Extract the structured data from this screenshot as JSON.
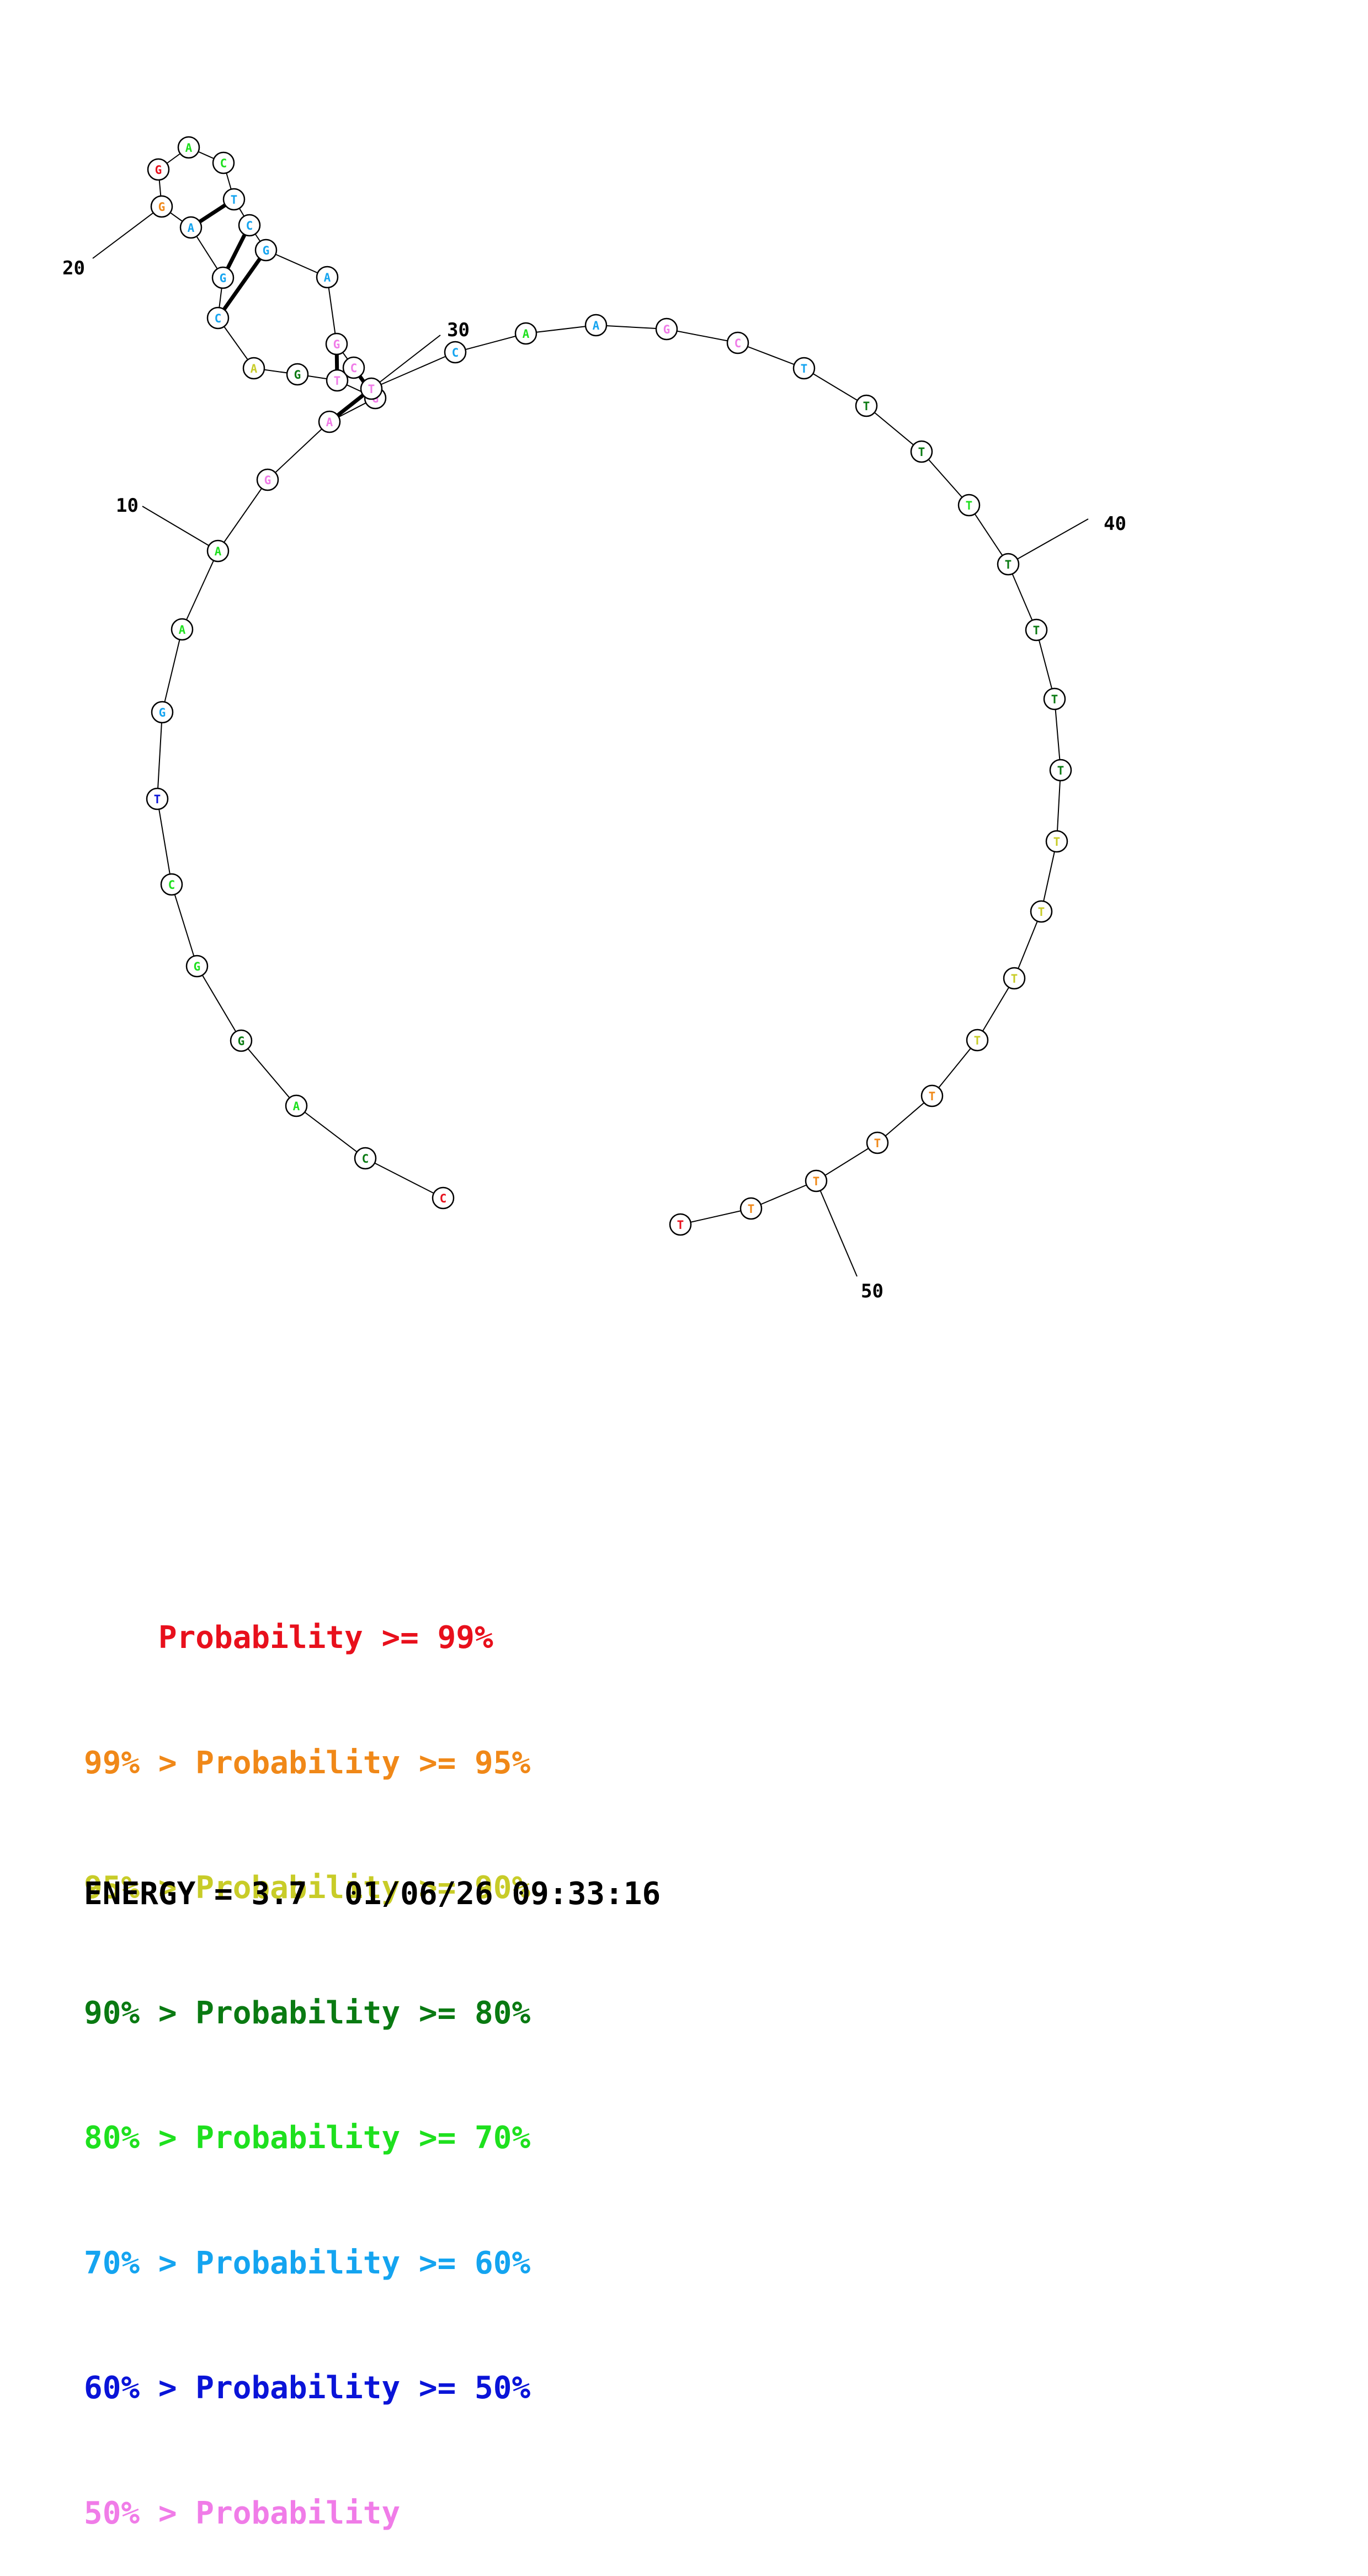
{
  "colors": {
    "red": "#e8101c",
    "orange": "#f08818",
    "yellow": "#c8cc28",
    "darkgreen": "#0a7a12",
    "green": "#1ee01e",
    "cyan": "#14a4f0",
    "blue": "#0a14d8",
    "pink": "#f07ce8"
  },
  "sequence": [
    {
      "n": 1,
      "base": "C",
      "color": "red"
    },
    {
      "n": 2,
      "base": "C",
      "color": "darkgreen"
    },
    {
      "n": 3,
      "base": "A",
      "color": "green"
    },
    {
      "n": 4,
      "base": "G",
      "color": "darkgreen"
    },
    {
      "n": 5,
      "base": "G",
      "color": "green"
    },
    {
      "n": 6,
      "base": "C",
      "color": "green"
    },
    {
      "n": 7,
      "base": "T",
      "color": "blue"
    },
    {
      "n": 8,
      "base": "G",
      "color": "cyan"
    },
    {
      "n": 9,
      "base": "A",
      "color": "green"
    },
    {
      "n": 10,
      "base": "A",
      "color": "green"
    },
    {
      "n": 11,
      "base": "G",
      "color": "pink"
    },
    {
      "n": 12,
      "base": "A",
      "color": "pink"
    },
    {
      "n": 13,
      "base": "G",
      "color": "pink"
    },
    {
      "n": 14,
      "base": "T",
      "color": "pink"
    },
    {
      "n": 15,
      "base": "G",
      "color": "darkgreen"
    },
    {
      "n": 16,
      "base": "A",
      "color": "yellow"
    },
    {
      "n": 17,
      "base": "C",
      "color": "cyan"
    },
    {
      "n": 18,
      "base": "G",
      "color": "cyan"
    },
    {
      "n": 19,
      "base": "A",
      "color": "cyan"
    },
    {
      "n": 20,
      "base": "G",
      "color": "orange"
    },
    {
      "n": 21,
      "base": "G",
      "color": "red"
    },
    {
      "n": 22,
      "base": "A",
      "color": "green"
    },
    {
      "n": 23,
      "base": "C",
      "color": "green"
    },
    {
      "n": 24,
      "base": "T",
      "color": "cyan"
    },
    {
      "n": 25,
      "base": "C",
      "color": "cyan"
    },
    {
      "n": 26,
      "base": "G",
      "color": "cyan"
    },
    {
      "n": 27,
      "base": "A",
      "color": "cyan"
    },
    {
      "n": 28,
      "base": "G",
      "color": "pink"
    },
    {
      "n": 29,
      "base": "C",
      "color": "pink"
    },
    {
      "n": 30,
      "base": "T",
      "color": "pink"
    },
    {
      "n": 31,
      "base": "C",
      "color": "cyan"
    },
    {
      "n": 32,
      "base": "A",
      "color": "green"
    },
    {
      "n": 33,
      "base": "A",
      "color": "cyan"
    },
    {
      "n": 34,
      "base": "G",
      "color": "pink"
    },
    {
      "n": 35,
      "base": "C",
      "color": "pink"
    },
    {
      "n": 36,
      "base": "T",
      "color": "cyan"
    },
    {
      "n": 37,
      "base": "T",
      "color": "darkgreen"
    },
    {
      "n": 38,
      "base": "T",
      "color": "darkgreen"
    },
    {
      "n": 39,
      "base": "T",
      "color": "green"
    },
    {
      "n": 40,
      "base": "T",
      "color": "darkgreen"
    },
    {
      "n": 41,
      "base": "T",
      "color": "darkgreen"
    },
    {
      "n": 42,
      "base": "T",
      "color": "darkgreen"
    },
    {
      "n": 43,
      "base": "T",
      "color": "darkgreen"
    },
    {
      "n": 44,
      "base": "T",
      "color": "yellow"
    },
    {
      "n": 45,
      "base": "T",
      "color": "yellow"
    },
    {
      "n": 46,
      "base": "T",
      "color": "yellow"
    },
    {
      "n": 47,
      "base": "T",
      "color": "yellow"
    },
    {
      "n": 48,
      "base": "T",
      "color": "orange"
    },
    {
      "n": 49,
      "base": "T",
      "color": "orange"
    },
    {
      "n": 50,
      "base": "T",
      "color": "orange"
    },
    {
      "n": 51,
      "base": "T",
      "color": "orange"
    },
    {
      "n": 52,
      "base": "T",
      "color": "red"
    }
  ],
  "base_pairs": [
    [
      12,
      30
    ],
    [
      13,
      29
    ],
    [
      14,
      28
    ],
    [
      17,
      26
    ],
    [
      18,
      25
    ],
    [
      19,
      24
    ]
  ],
  "position_labels": [
    "10",
    "20",
    "30",
    "40",
    "50"
  ],
  "legend": [
    {
      "prefix": "    ",
      "text": "Probability >= 99%",
      "color": "red"
    },
    {
      "prefix": "99% > ",
      "text": "Probability >= 95%",
      "color": "orange"
    },
    {
      "prefix": "95% > ",
      "text": "Probability >= 90%",
      "color": "yellow"
    },
    {
      "prefix": "90% > ",
      "text": "Probability >= 80%",
      "color": "darkgreen"
    },
    {
      "prefix": "80% > ",
      "text": "Probability >= 70%",
      "color": "green"
    },
    {
      "prefix": "70% > ",
      "text": "Probability >= 60%",
      "color": "cyan"
    },
    {
      "prefix": "60% > ",
      "text": "Probability >= 50%",
      "color": "blue"
    },
    {
      "prefix": "50% > ",
      "text": "Probability",
      "color": "pink"
    }
  ],
  "energy_line": "ENERGY = 3.7  01/06/26 09:33:16"
}
